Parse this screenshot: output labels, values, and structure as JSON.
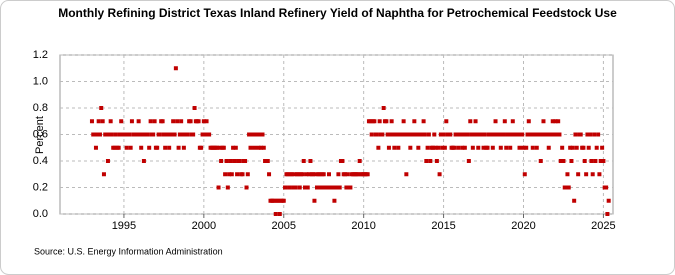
{
  "chart_data": {
    "type": "scatter",
    "title": "Monthly Refining District Texas Inland Refinery Yield of Naphtha for Petrochemical Feedstock Use",
    "y_label": "Percent",
    "source": "Source: U.S. Energy Information Administration",
    "color": "#c00000",
    "grid": true,
    "xlim": [
      1991.0,
      2025.6
    ],
    "xticks": [
      1995,
      2000,
      2005,
      2010,
      2015,
      2020,
      2025
    ],
    "ylim": [
      0,
      1.2
    ],
    "yticks": [
      {
        "value": 0,
        "label": "0.0"
      },
      0.2,
      0.4,
      0.6,
      0.8,
      {
        "value": 1,
        "label": "1.0"
      },
      1.2
    ],
    "x": [
      1993.0,
      1993.08,
      1993.17,
      1993.25,
      1993.33,
      1993.42,
      1993.5,
      1993.58,
      1993.67,
      1993.75,
      1993.83,
      1993.92,
      1994.0,
      1994.08,
      1994.17,
      1994.25,
      1994.33,
      1994.42,
      1994.5,
      1994.58,
      1994.67,
      1994.75,
      1994.83,
      1994.92,
      1995.0,
      1995.08,
      1995.17,
      1995.25,
      1995.33,
      1995.42,
      1995.5,
      1995.58,
      1995.67,
      1995.75,
      1995.83,
      1995.92,
      1996.0,
      1996.08,
      1996.17,
      1996.25,
      1996.33,
      1996.42,
      1996.5,
      1996.58,
      1996.67,
      1996.75,
      1996.83,
      1996.92,
      1997.0,
      1997.08,
      1997.17,
      1997.25,
      1997.33,
      1997.42,
      1997.5,
      1997.58,
      1997.67,
      1997.75,
      1997.83,
      1997.92,
      1998.0,
      1998.08,
      1998.17,
      1998.25,
      1998.33,
      1998.42,
      1998.5,
      1998.58,
      1998.67,
      1998.75,
      1998.83,
      1998.92,
      1999.0,
      1999.08,
      1999.17,
      1999.25,
      1999.33,
      1999.42,
      1999.5,
      1999.58,
      1999.67,
      1999.75,
      1999.83,
      1999.92,
      2000.0,
      2000.08,
      2000.17,
      2000.25,
      2000.33,
      2000.42,
      2000.5,
      2000.58,
      2000.67,
      2000.75,
      2000.83,
      2000.92,
      2001.0,
      2001.08,
      2001.17,
      2001.25,
      2001.33,
      2001.42,
      2001.5,
      2001.58,
      2001.67,
      2001.75,
      2001.83,
      2001.92,
      2002.0,
      2002.08,
      2002.17,
      2002.25,
      2002.33,
      2002.42,
      2002.5,
      2002.58,
      2002.67,
      2002.75,
      2002.83,
      2002.92,
      2003.0,
      2003.08,
      2003.17,
      2003.25,
      2003.33,
      2003.42,
      2003.5,
      2003.58,
      2003.67,
      2003.75,
      2003.83,
      2003.92,
      2004.0,
      2004.08,
      2004.17,
      2004.25,
      2004.33,
      2004.42,
      2004.5,
      2004.58,
      2004.67,
      2004.75,
      2004.83,
      2004.92,
      2005.0,
      2005.08,
      2005.17,
      2005.25,
      2005.33,
      2005.42,
      2005.5,
      2005.58,
      2005.67,
      2005.75,
      2005.83,
      2005.92,
      2006.0,
      2006.08,
      2006.17,
      2006.25,
      2006.33,
      2006.42,
      2006.5,
      2006.58,
      2006.67,
      2006.75,
      2006.83,
      2006.92,
      2007.0,
      2007.08,
      2007.17,
      2007.25,
      2007.33,
      2007.42,
      2007.5,
      2007.58,
      2007.67,
      2007.75,
      2007.83,
      2007.92,
      2008.0,
      2008.08,
      2008.17,
      2008.25,
      2008.33,
      2008.42,
      2008.5,
      2008.58,
      2008.67,
      2008.75,
      2008.83,
      2008.92,
      2009.0,
      2009.08,
      2009.17,
      2009.25,
      2009.33,
      2009.42,
      2009.5,
      2009.58,
      2009.67,
      2009.75,
      2009.83,
      2009.92,
      2010.0,
      2010.08,
      2010.17,
      2010.25,
      2010.33,
      2010.42,
      2010.5,
      2010.58,
      2010.67,
      2010.75,
      2010.83,
      2010.92,
      2011.0,
      2011.08,
      2011.17,
      2011.25,
      2011.33,
      2011.42,
      2011.5,
      2011.58,
      2011.67,
      2011.75,
      2011.83,
      2011.92,
      2012.0,
      2012.08,
      2012.17,
      2012.25,
      2012.33,
      2012.42,
      2012.5,
      2012.58,
      2012.67,
      2012.75,
      2012.83,
      2012.92,
      2013.0,
      2013.08,
      2013.17,
      2013.25,
      2013.33,
      2013.42,
      2013.5,
      2013.58,
      2013.67,
      2013.75,
      2013.83,
      2013.92,
      2014.0,
      2014.08,
      2014.17,
      2014.25,
      2014.33,
      2014.42,
      2014.5,
      2014.58,
      2014.67,
      2014.75,
      2014.83,
      2014.92,
      2015.0,
      2015.08,
      2015.17,
      2015.25,
      2015.33,
      2015.42,
      2015.5,
      2015.58,
      2015.67,
      2015.75,
      2015.83,
      2015.92,
      2016.0,
      2016.08,
      2016.17,
      2016.25,
      2016.33,
      2016.42,
      2016.5,
      2016.58,
      2016.67,
      2016.75,
      2016.83,
      2016.92,
      2017.0,
      2017.08,
      2017.17,
      2017.25,
      2017.33,
      2017.42,
      2017.5,
      2017.58,
      2017.67,
      2017.75,
      2017.83,
      2017.92,
      2018.0,
      2018.08,
      2018.17,
      2018.25,
      2018.33,
      2018.42,
      2018.5,
      2018.58,
      2018.67,
      2018.75,
      2018.83,
      2018.92,
      2019.0,
      2019.08,
      2019.17,
      2019.25,
      2019.33,
      2019.42,
      2019.5,
      2019.58,
      2019.67,
      2019.75,
      2019.83,
      2019.92,
      2020.0,
      2020.08,
      2020.17,
      2020.25,
      2020.33,
      2020.42,
      2020.5,
      2020.58,
      2020.67,
      2020.75,
      2020.83,
      2020.92,
      2021.0,
      2021.08,
      2021.17,
      2021.25,
      2021.33,
      2021.42,
      2021.5,
      2021.58,
      2021.67,
      2021.75,
      2021.83,
      2021.92,
      2022.0,
      2022.08,
      2022.17,
      2022.25,
      2022.33,
      2022.42,
      2022.5,
      2022.58,
      2022.67,
      2022.75,
      2022.83,
      2022.92,
      2023.0,
      2023.08,
      2023.17,
      2023.25,
      2023.33,
      2023.42,
      2023.5,
      2023.58,
      2023.67,
      2023.75,
      2023.83,
      2023.92,
      2024.0,
      2024.08,
      2024.17,
      2024.25,
      2024.33,
      2024.42,
      2024.5,
      2024.58,
      2024.67,
      2024.75,
      2024.83,
      2024.92,
      2025.0,
      2025.08,
      2025.17,
      2025.25,
      2025.33
    ],
    "values": [
      0.7,
      0.6,
      0.6,
      0.5,
      0.6,
      0.7,
      0.6,
      0.8,
      0.7,
      0.3,
      0.6,
      0.6,
      0.4,
      0.6,
      0.7,
      0.6,
      0.5,
      0.5,
      0.6,
      0.5,
      0.5,
      0.6,
      0.7,
      0.6,
      0.6,
      0.6,
      0.5,
      0.6,
      0.6,
      0.5,
      0.7,
      0.6,
      0.6,
      0.6,
      0.6,
      0.7,
      0.6,
      0.5,
      0.6,
      0.4,
      0.6,
      0.6,
      0.6,
      0.5,
      0.7,
      0.6,
      0.6,
      0.7,
      0.5,
      0.5,
      0.6,
      0.6,
      0.7,
      0.7,
      0.6,
      0.5,
      0.6,
      0.6,
      0.5,
      0.6,
      0.6,
      0.7,
      0.6,
      1.1,
      0.7,
      0.5,
      0.6,
      0.7,
      0.6,
      0.5,
      0.6,
      0.6,
      0.6,
      0.7,
      0.7,
      0.6,
      0.6,
      0.8,
      0.7,
      0.7,
      0.7,
      0.5,
      0.5,
      0.6,
      0.7,
      0.6,
      0.7,
      0.6,
      0.6,
      0.5,
      0.5,
      0.5,
      0.5,
      0.5,
      0.5,
      0.2,
      0.5,
      0.4,
      0.5,
      0.5,
      0.3,
      0.4,
      0.2,
      0.3,
      0.4,
      0.3,
      0.5,
      0.4,
      0.5,
      0.3,
      0.4,
      0.4,
      0.3,
      0.3,
      0.4,
      0.4,
      0.2,
      0.3,
      0.6,
      0.5,
      0.6,
      0.6,
      0.5,
      0.6,
      0.6,
      0.5,
      0.6,
      0.5,
      0.6,
      0.5,
      0.4,
      0.4,
      0.4,
      0.3,
      0.1,
      0.1,
      0.1,
      0.1,
      0.0,
      0.1,
      0.1,
      0.0,
      0.1,
      0.1,
      0.1,
      0.2,
      0.3,
      0.3,
      0.2,
      0.3,
      0.3,
      0.2,
      0.3,
      0.2,
      0.3,
      0.3,
      0.2,
      0.3,
      0.3,
      0.4,
      0.2,
      0.3,
      0.2,
      0.3,
      0.4,
      0.3,
      0.3,
      0.1,
      0.3,
      0.2,
      0.3,
      0.3,
      0.2,
      0.3,
      0.3,
      0.2,
      0.2,
      0.2,
      0.3,
      0.2,
      0.2,
      0.2,
      0.1,
      0.2,
      0.2,
      0.3,
      0.2,
      0.4,
      0.4,
      0.3,
      0.3,
      0.2,
      0.3,
      0.2,
      0.2,
      0.3,
      0.3,
      0.3,
      0.3,
      0.3,
      0.3,
      0.4,
      0.3,
      0.3,
      0.3,
      0.3,
      0.3,
      0.3,
      0.7,
      0.7,
      0.6,
      0.7,
      0.7,
      0.6,
      0.6,
      0.5,
      0.7,
      0.6,
      0.6,
      0.8,
      0.7,
      0.7,
      0.6,
      0.5,
      0.6,
      0.7,
      0.6,
      0.5,
      0.6,
      0.6,
      0.5,
      0.6,
      0.6,
      0.6,
      0.7,
      0.6,
      0.3,
      0.6,
      0.6,
      0.5,
      0.6,
      0.6,
      0.7,
      0.6,
      0.6,
      0.5,
      0.6,
      0.6,
      0.6,
      0.7,
      0.6,
      0.4,
      0.5,
      0.6,
      0.4,
      0.5,
      0.5,
      0.6,
      0.5,
      0.4,
      0.5,
      0.3,
      0.6,
      0.5,
      0.6,
      0.5,
      0.7,
      0.6,
      0.6,
      0.6,
      0.5,
      0.5,
      0.5,
      0.6,
      0.6,
      0.5,
      0.6,
      0.6,
      0.5,
      0.6,
      0.5,
      0.6,
      0.6,
      0.4,
      0.7,
      0.6,
      0.5,
      0.6,
      0.7,
      0.6,
      0.5,
      0.6,
      0.6,
      0.6,
      0.5,
      0.6,
      0.5,
      0.5,
      0.6,
      0.6,
      0.6,
      0.5,
      0.6,
      0.7,
      0.6,
      0.6,
      0.6,
      0.5,
      0.6,
      0.6,
      0.7,
      0.5,
      0.6,
      0.6,
      0.5,
      0.6,
      0.7,
      0.6,
      0.6,
      0.6,
      0.6,
      0.5,
      0.6,
      0.6,
      0.5,
      0.3,
      0.5,
      0.6,
      0.7,
      0.6,
      0.6,
      0.5,
      0.6,
      0.6,
      0.5,
      0.6,
      0.6,
      0.4,
      0.6,
      0.7,
      0.6,
      0.6,
      0.6,
      0.5,
      0.6,
      0.6,
      0.7,
      0.6,
      0.7,
      0.6,
      0.7,
      0.6,
      0.4,
      0.5,
      0.4,
      0.2,
      0.2,
      0.3,
      0.2,
      0.5,
      0.4,
      0.5,
      0.1,
      0.6,
      0.5,
      0.3,
      0.6,
      0.6,
      0.5,
      0.5,
      0.4,
      0.3,
      0.6,
      0.5,
      0.6,
      0.4,
      0.3,
      0.6,
      0.4,
      0.5,
      0.6,
      0.3,
      0.4,
      0.5,
      0.4,
      0.2,
      0.2,
      0.0,
      0.1
    ]
  }
}
